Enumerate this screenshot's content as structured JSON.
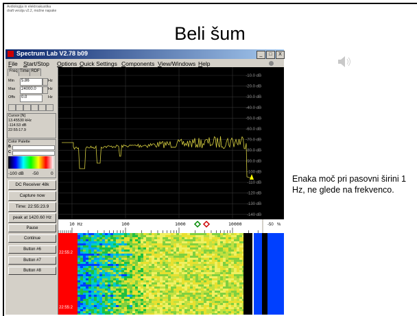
{
  "slide": {
    "header": [
      "Avdiologija in elektroakustika",
      "draft verzija v2.2, možne napake"
    ],
    "title": "Beli šum",
    "note": "Enaka moč pri pasovni širini 1 Hz, ne glede na frekvenco."
  },
  "window": {
    "title": "Spectrum Lab V2.78 b09",
    "menu": [
      "File",
      "Start/Stop",
      "Options",
      "Quick Settings",
      "Components",
      "View/Windows",
      "Help"
    ],
    "tabs": [
      "Freq",
      "Time",
      "RDF"
    ],
    "freq_fields": [
      {
        "label": "Min",
        "value": "5.86",
        "unit": "Hz"
      },
      {
        "label": "Max",
        "value": "24000.0",
        "unit": "Hz"
      },
      {
        "label": "Offs",
        "value": "0.0",
        "unit": "Hz"
      }
    ],
    "cursor": {
      "title": "Cursor [N]",
      "lines": [
        "13.45530 kHz",
        "-114.53 dB",
        "22:55:17.9"
      ]
    },
    "palette": {
      "title": "Color Palette",
      "rows": [
        "B",
        "C"
      ],
      "scale": [
        "-100 dB",
        "-50",
        "0"
      ]
    },
    "buttons": [
      "DC Receiver 48k",
      "Capture now",
      "Time: 22:55:23.9",
      "peak at 1420.60 Hz",
      "Pause",
      "Continue",
      "Button #6",
      "Button #7",
      "Button #8"
    ],
    "db_labels": [
      "-10.0 dB",
      "-20.0 dB",
      "-30.0 dB",
      "-40.0 dB",
      "-50.0 dB",
      "-60.0 dB",
      "-70.0 dB",
      "-80.0 dB",
      "-90.0 dB",
      "-100 dB",
      "-110 dB",
      "-120 dB",
      "-130 dB",
      "-140 dB"
    ],
    "freq_labels": [
      "10 Hz",
      "100",
      "1000",
      "10000"
    ],
    "side_labels": [
      "-50",
      "%"
    ],
    "waterfall_times": [
      "22:55:2",
      "22:55:2"
    ]
  }
}
